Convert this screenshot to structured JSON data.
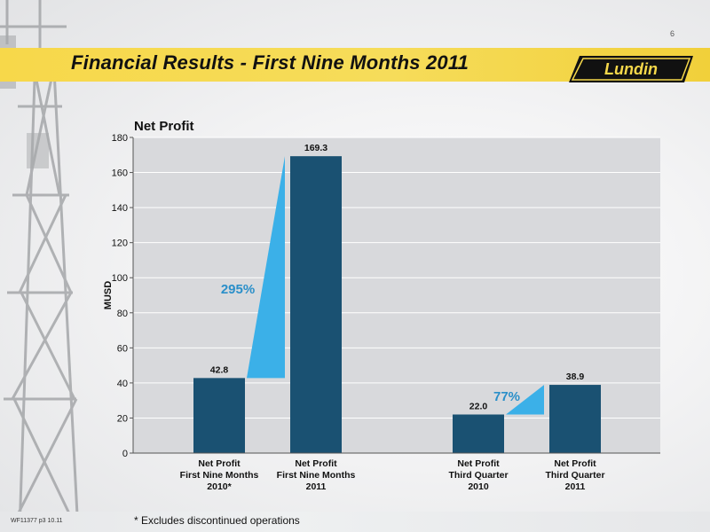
{
  "page_number": "6",
  "title": "Financial Results - First Nine Months 2011",
  "logo_text": "Lundin",
  "footer_ref": "WF11377 p3 10.11",
  "footnote": "* Excludes discontinued operations",
  "colors": {
    "bar": "#1a5172",
    "growth": "#3bb0e8",
    "growth_text": "#2a8fc9",
    "plot_bg": "#d8d9dc",
    "title_band": "#f6d84a"
  },
  "chart_data": {
    "type": "bar",
    "title": "Net Profit",
    "ylabel": "MUSD",
    "xlabel": "",
    "ylim": [
      0,
      180
    ],
    "yticks": [
      0,
      20,
      40,
      60,
      80,
      100,
      120,
      140,
      160,
      180
    ],
    "grid": true,
    "categories": [
      [
        "Net Profit",
        "First Nine Months",
        "2010*"
      ],
      [
        "Net Profit",
        "First Nine Months",
        "2011"
      ],
      [
        "Net Profit",
        "Third Quarter",
        "2010"
      ],
      [
        "Net Profit",
        "Third Quarter",
        "2011"
      ]
    ],
    "values": [
      42.8,
      169.3,
      22.0,
      38.9
    ],
    "value_labels": [
      "42.8",
      "169.3",
      "22.0",
      "38.9"
    ],
    "annotations": [
      {
        "text": "295%",
        "from_index": 0,
        "to_index": 1
      },
      {
        "text": "77%",
        "from_index": 2,
        "to_index": 3
      }
    ]
  }
}
